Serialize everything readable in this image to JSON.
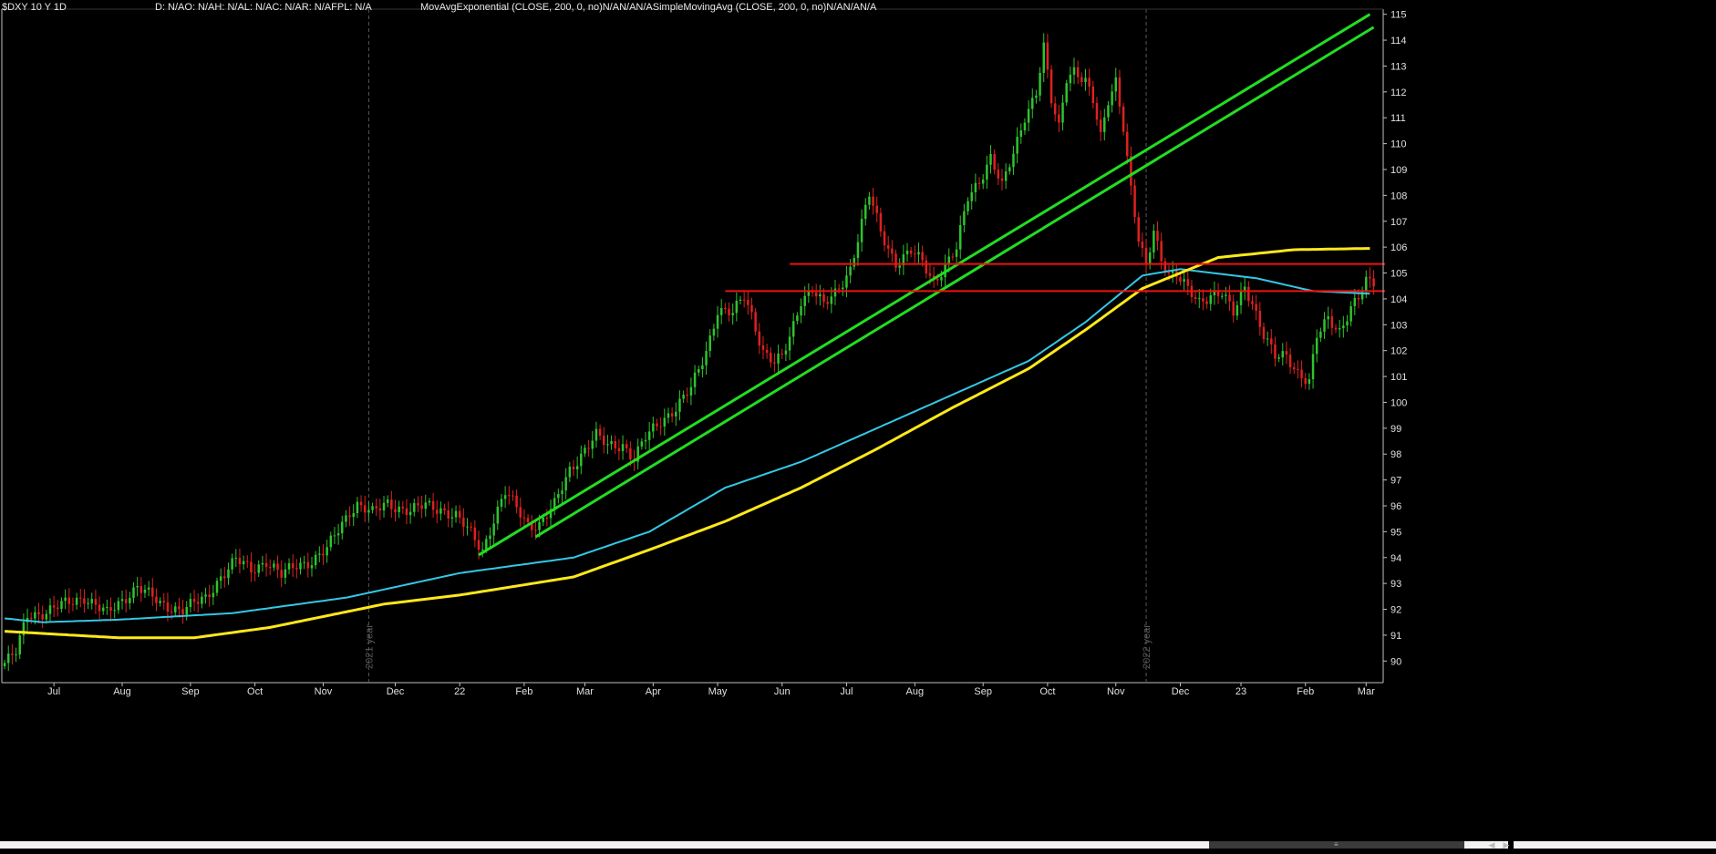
{
  "header": {
    "symbol": "$DXY 10 Y 1D",
    "study_values": "D: N/AO: N/AH: N/AL: N/AC: N/AR: N/AFPL: N/A",
    "studies": "MovAvgExponential (CLOSE, 200, 0, no)N/AN/AN/ASimpleMovingAvg (CLOSE, 200, 0, no)N/AN/AN/A"
  },
  "colors": {
    "background": "#000000",
    "up_candle": "#2ec42e",
    "down_candle": "#e02020",
    "ema": "#33c8e6",
    "sma": "#ffe81a",
    "trendline": "#22dd22",
    "horizontal_line": "#ee1111",
    "axis": "#bfbfbf",
    "year_separator": "#5a5a5a"
  },
  "year_markers": [
    {
      "label": "2021 year",
      "x_index": 96
    },
    {
      "label": "2022 year",
      "x_index": 301
    }
  ],
  "chart_data": {
    "type": "candlestick",
    "title": "$DXY 10 Y 1D",
    "x_tick_labels": [
      {
        "label": "Jul",
        "index": 13
      },
      {
        "label": "Aug",
        "index": 31
      },
      {
        "label": "Sep",
        "index": 49
      },
      {
        "label": "Oct",
        "index": 66
      },
      {
        "label": "Nov",
        "index": 84
      },
      {
        "label": "Dec",
        "index": 103
      },
      {
        "label": "22",
        "index": 120
      },
      {
        "label": "Feb",
        "index": 137
      },
      {
        "label": "Mar",
        "index": 153
      },
      {
        "label": "Apr",
        "index": 171
      },
      {
        "label": "May",
        "index": 188
      },
      {
        "label": "Jun",
        "index": 205
      },
      {
        "label": "Jul",
        "index": 222
      },
      {
        "label": "Aug",
        "index": 240
      },
      {
        "label": "Sep",
        "index": 258
      },
      {
        "label": "Oct",
        "index": 275
      },
      {
        "label": "Nov",
        "index": 293
      },
      {
        "label": "Dec",
        "index": 310
      },
      {
        "label": "23",
        "index": 326
      },
      {
        "label": "Feb",
        "index": 343
      },
      {
        "label": "Mar",
        "index": 359
      }
    ],
    "y_ticks": [
      90,
      91,
      92,
      93,
      94,
      95,
      96,
      97,
      98,
      99,
      100,
      101,
      102,
      103,
      104,
      105,
      106,
      107,
      108,
      109,
      110,
      111,
      112,
      113,
      114,
      115
    ],
    "ylim": [
      89.2,
      115.2
    ],
    "x_count": 364,
    "price_anchors": [
      [
        0,
        89.8
      ],
      [
        4,
        90.3
      ],
      [
        7,
        91.8
      ],
      [
        12,
        91.9
      ],
      [
        17,
        92.2
      ],
      [
        22,
        92.5
      ],
      [
        28,
        91.8
      ],
      [
        33,
        92.5
      ],
      [
        36,
        92.9
      ],
      [
        42,
        92.2
      ],
      [
        48,
        92.0
      ],
      [
        54,
        92.4
      ],
      [
        58,
        93.3
      ],
      [
        62,
        93.9
      ],
      [
        66,
        93.5
      ],
      [
        70,
        93.9
      ],
      [
        74,
        93.3
      ],
      [
        78,
        93.7
      ],
      [
        82,
        93.9
      ],
      [
        86,
        94.3
      ],
      [
        92,
        95.8
      ],
      [
        94,
        96.1
      ],
      [
        98,
        95.7
      ],
      [
        102,
        96.1
      ],
      [
        108,
        95.8
      ],
      [
        112,
        96.0
      ],
      [
        116,
        95.9
      ],
      [
        120,
        95.6
      ],
      [
        124,
        94.9
      ],
      [
        127,
        94.3
      ],
      [
        130,
        95.5
      ],
      [
        133,
        96.5
      ],
      [
        136,
        95.9
      ],
      [
        139,
        95.3
      ],
      [
        142,
        95.3
      ],
      [
        146,
        96.0
      ],
      [
        150,
        97.4
      ],
      [
        154,
        98.2
      ],
      [
        157,
        98.7
      ],
      [
        160,
        98.3
      ],
      [
        164,
        98.4
      ],
      [
        167,
        97.8
      ],
      [
        170,
        98.6
      ],
      [
        174,
        99.3
      ],
      [
        178,
        99.8
      ],
      [
        182,
        100.5
      ],
      [
        186,
        102.0
      ],
      [
        189,
        103.6
      ],
      [
        193,
        103.4
      ],
      [
        196,
        104.1
      ],
      [
        198,
        103.4
      ],
      [
        201,
        102.0
      ],
      [
        204,
        101.5
      ],
      [
        206,
        101.7
      ],
      [
        208,
        102.5
      ],
      [
        211,
        104.0
      ],
      [
        214,
        104.4
      ],
      [
        217,
        103.7
      ],
      [
        220,
        104.2
      ],
      [
        224,
        105.2
      ],
      [
        227,
        106.9
      ],
      [
        229,
        108.0
      ],
      [
        232,
        106.6
      ],
      [
        236,
        105.4
      ],
      [
        240,
        105.8
      ],
      [
        243,
        105.4
      ],
      [
        246,
        104.7
      ],
      [
        249,
        105.3
      ],
      [
        252,
        105.9
      ],
      [
        255,
        107.9
      ],
      [
        258,
        108.6
      ],
      [
        261,
        109.5
      ],
      [
        264,
        108.3
      ],
      [
        267,
        109.6
      ],
      [
        270,
        111.1
      ],
      [
        273,
        112.0
      ],
      [
        275,
        113.7
      ],
      [
        277,
        111.6
      ],
      [
        279,
        110.6
      ],
      [
        281,
        112.6
      ],
      [
        283,
        112.9
      ],
      [
        286,
        112.4
      ],
      [
        288,
        111.6
      ],
      [
        290,
        110.2
      ],
      [
        292,
        111.7
      ],
      [
        294,
        112.5
      ],
      [
        296,
        110.7
      ],
      [
        298,
        108.2
      ],
      [
        300,
        106.2
      ],
      [
        302,
        105.2
      ],
      [
        304,
        106.7
      ],
      [
        306,
        105.6
      ],
      [
        308,
        105.0
      ],
      [
        310,
        104.9
      ],
      [
        313,
        104.3
      ],
      [
        316,
        103.9
      ],
      [
        319,
        104.2
      ],
      [
        322,
        104.2
      ],
      [
        325,
        103.4
      ],
      [
        328,
        104.5
      ],
      [
        330,
        103.9
      ],
      [
        333,
        102.6
      ],
      [
        336,
        101.7
      ],
      [
        339,
        101.8
      ],
      [
        342,
        101.2
      ],
      [
        345,
        100.8
      ],
      [
        347,
        102.5
      ],
      [
        350,
        103.2
      ],
      [
        353,
        102.8
      ],
      [
        356,
        103.7
      ],
      [
        358,
        104.0
      ],
      [
        360,
        104.6
      ]
    ],
    "series": [
      {
        "name": "MovAvgExponential (CLOSE, 200, 0, no)",
        "color": "cyan",
        "points": [
          [
            0,
            91.65
          ],
          [
            10,
            91.5
          ],
          [
            30,
            91.6
          ],
          [
            60,
            91.85
          ],
          [
            90,
            92.45
          ],
          [
            120,
            93.4
          ],
          [
            150,
            94.0
          ],
          [
            170,
            95.0
          ],
          [
            190,
            96.7
          ],
          [
            210,
            97.7
          ],
          [
            230,
            99.0
          ],
          [
            250,
            100.3
          ],
          [
            270,
            101.6
          ],
          [
            285,
            103.1
          ],
          [
            300,
            104.9
          ],
          [
            310,
            105.15
          ],
          [
            330,
            104.8
          ],
          [
            345,
            104.3
          ],
          [
            360,
            104.2
          ]
        ]
      },
      {
        "name": "SimpleMovingAvg (CLOSE, 200, 0, no)",
        "color": "yellow",
        "points": [
          [
            0,
            91.15
          ],
          [
            30,
            90.9
          ],
          [
            50,
            90.9
          ],
          [
            70,
            91.3
          ],
          [
            100,
            92.2
          ],
          [
            120,
            92.55
          ],
          [
            150,
            93.25
          ],
          [
            170,
            94.3
          ],
          [
            190,
            95.4
          ],
          [
            210,
            96.7
          ],
          [
            230,
            98.2
          ],
          [
            250,
            99.8
          ],
          [
            270,
            101.3
          ],
          [
            285,
            102.8
          ],
          [
            300,
            104.4
          ],
          [
            320,
            105.6
          ],
          [
            340,
            105.9
          ],
          [
            360,
            105.95
          ]
        ]
      }
    ],
    "trendlines": [
      {
        "type": "upper-channel",
        "from": [
          125,
          94.1
        ],
        "to": [
          360,
          115.0
        ]
      },
      {
        "type": "lower-channel",
        "from": [
          140,
          94.8
        ],
        "to": [
          361,
          114.5
        ]
      },
      {
        "type": "horizontal-resistance",
        "from": [
          207,
          105.35
        ],
        "to": [
          364,
          105.35
        ]
      },
      {
        "type": "horizontal-support",
        "from": [
          190,
          104.3
        ],
        "to": [
          364,
          104.3
        ]
      }
    ],
    "grid": false
  }
}
